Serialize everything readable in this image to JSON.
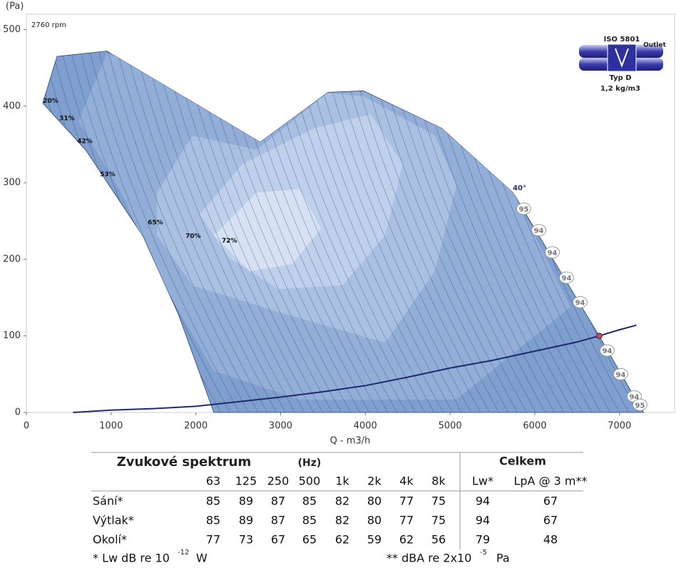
{
  "chart_data": {
    "type": "line",
    "y_label": "(Pa)",
    "x_label": "Q - m3/h",
    "speed_label": "2760 rpm",
    "xlim": [
      0,
      7650
    ],
    "ylim": [
      0,
      520
    ],
    "xticks": [
      0,
      1000,
      2000,
      3000,
      4000,
      5000,
      6000,
      7000
    ],
    "yticks": [
      0,
      100,
      200,
      300,
      400,
      500
    ],
    "x": [
      550,
      1000,
      1500,
      2000,
      2500,
      3000,
      3500,
      4000,
      4500,
      5000,
      5500,
      6000,
      6500,
      6760,
      7000,
      7200
    ],
    "values": [
      0,
      3,
      5,
      8,
      14,
      20,
      27,
      35,
      46,
      58,
      68,
      80,
      92,
      100,
      108,
      114
    ],
    "color": "#1f2a6e",
    "operating_point": {
      "x": 6760,
      "y": 100,
      "color": "#c0504d"
    },
    "envelope": {
      "color": "#7f9fcf",
      "x": [
        362,
        950,
        2759,
        3558,
        3978,
        4903,
        5744,
        6754,
        7283,
        2212,
        1791,
        1371,
        698,
        193
      ],
      "y": [
        465,
        472,
        353,
        418,
        420,
        371,
        287,
        101,
        0,
        0,
        129,
        231,
        343,
        404
      ]
    },
    "efficiency_labels": [
      {
        "label": "20%",
        "x": 286,
        "y": 407
      },
      {
        "label": "31%",
        "x": 479,
        "y": 384
      },
      {
        "label": "42%",
        "x": 690,
        "y": 354
      },
      {
        "label": "53%",
        "x": 959,
        "y": 311
      },
      {
        "label": "65%",
        "x": 1522,
        "y": 248
      },
      {
        "label": "70%",
        "x": 1968,
        "y": 230
      },
      {
        "label": "72%",
        "x": 2397,
        "y": 224
      }
    ],
    "angle_label": {
      "label": "40°",
      "x": 5820,
      "y": 293
    },
    "noise_labels": [
      {
        "label": "95",
        "x": 5870,
        "y": 266
      },
      {
        "label": "94",
        "x": 6047,
        "y": 238
      },
      {
        "label": "94",
        "x": 6207,
        "y": 209
      },
      {
        "label": "94",
        "x": 6375,
        "y": 176
      },
      {
        "label": "94",
        "x": 6535,
        "y": 144
      },
      {
        "label": "94",
        "x": 6854,
        "y": 81
      },
      {
        "label": "94",
        "x": 7014,
        "y": 50
      },
      {
        "label": "94",
        "x": 7174,
        "y": 21
      },
      {
        "label": "95",
        "x": 7241,
        "y": 10
      }
    ],
    "fan_icon": {
      "standard": "ISO 5801",
      "outlet": "Outlet",
      "type": "Typ D",
      "density": "1,2 kg/m3"
    }
  },
  "table": {
    "title": "Zvukové spektrum",
    "unit": "(Hz)",
    "total": "Celkem",
    "columns": [
      "63",
      "125",
      "250",
      "500",
      "1k",
      "2k",
      "4k",
      "8k"
    ],
    "total_columns": [
      "Lw*",
      "LpA @ 3 m**"
    ],
    "rows": [
      {
        "label": "Sání*",
        "values": [
          85,
          89,
          87,
          85,
          82,
          80,
          77,
          75
        ],
        "totals": [
          94,
          67
        ]
      },
      {
        "label": "Výtlak*",
        "values": [
          85,
          89,
          87,
          85,
          82,
          80,
          77,
          75
        ],
        "totals": [
          94,
          67
        ]
      },
      {
        "label": "Okolí*",
        "values": [
          77,
          73,
          67,
          65,
          62,
          59,
          62,
          56
        ],
        "totals": [
          79,
          48
        ]
      }
    ],
    "footnotes": [
      {
        "text": "* Lw dB re 10",
        "sup": "-12",
        "unit": "W"
      },
      {
        "text": "** dBA re 2x10",
        "sup": "-5",
        "unit": "Pa"
      }
    ]
  }
}
